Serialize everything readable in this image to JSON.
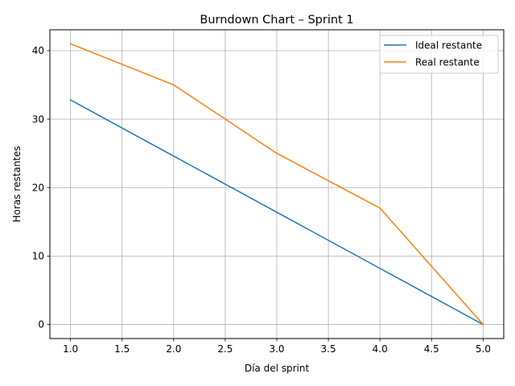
{
  "chart_data": {
    "type": "line",
    "title": "Burndown Chart – Sprint 1",
    "xlabel": "Día del sprint",
    "ylabel": "Horas restantes",
    "xlim": [
      0.8,
      5.2
    ],
    "ylim": [
      -2.05,
      43.05
    ],
    "xticks": [
      1.0,
      1.5,
      2.0,
      2.5,
      3.0,
      3.5,
      4.0,
      4.5,
      5.0
    ],
    "xtick_labels": [
      "1.0",
      "1.5",
      "2.0",
      "2.5",
      "3.0",
      "3.5",
      "4.0",
      "4.5",
      "5.0"
    ],
    "yticks": [
      0,
      10,
      20,
      30,
      40
    ],
    "ytick_labels": [
      "0",
      "10",
      "20",
      "30",
      "40"
    ],
    "grid": true,
    "legend_position": "top-right",
    "series": [
      {
        "name": "Ideal restante",
        "color": "#1f77b4",
        "x": [
          1,
          2,
          3,
          4,
          5
        ],
        "y": [
          32.8,
          24.6,
          16.4,
          8.2,
          0
        ]
      },
      {
        "name": "Real restante",
        "color": "#ff7f0e",
        "x": [
          1,
          2,
          3,
          4,
          5
        ],
        "y": [
          41,
          35,
          25,
          17,
          0
        ]
      }
    ]
  }
}
